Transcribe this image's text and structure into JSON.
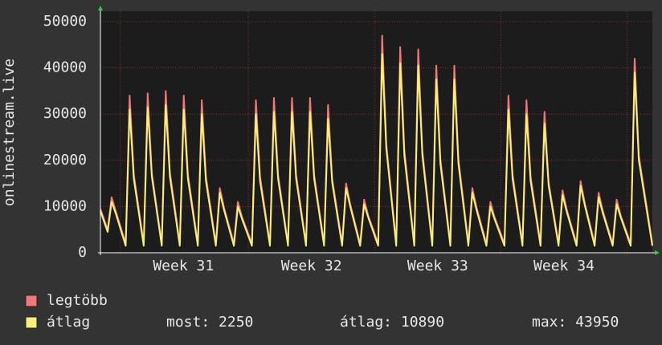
{
  "chart_data": {
    "type": "line",
    "y_label": "onlinestream.live",
    "x": [
      0,
      0.4,
      0.62,
      0.85,
      1.4,
      1.62,
      1.85,
      2.4,
      2.62,
      2.85,
      3.4,
      3.62,
      3.85,
      4.4,
      4.62,
      4.85,
      5.4,
      5.62,
      5.85,
      6.4,
      6.62,
      6.85,
      7.4,
      7.62,
      7.85,
      8.4,
      8.62,
      8.85,
      9.4,
      9.62,
      9.85,
      10.4,
      10.62,
      10.85,
      11.4,
      11.62,
      11.85,
      12.4,
      12.62,
      12.85,
      13.4,
      13.62,
      13.85,
      14.4,
      14.62,
      14.85,
      15.4,
      15.62,
      15.85,
      16.4,
      16.62,
      16.85,
      17.4,
      17.62,
      17.85,
      18.4,
      18.62,
      18.85,
      19.4,
      19.62,
      19.85,
      20.4,
      20.62,
      20.85,
      21.4,
      21.62,
      21.85,
      22.4,
      22.62,
      22.85,
      23.4,
      23.62,
      23.85,
      24.4,
      24.62,
      24.85,
      25.4,
      25.62,
      25.85,
      26.4,
      26.62,
      26.85,
      27.4,
      27.62,
      27.85,
      28.4,
      28.62,
      28.85,
      29.4,
      29.62,
      29.85,
      30.6
    ],
    "series": [
      {
        "name": "legtöbb",
        "color": "#f07878",
        "values": [
          9500,
          5000,
          12000,
          9000,
          2000,
          34000,
          17000,
          2000,
          34500,
          17200,
          2000,
          35000,
          17500,
          2000,
          34000,
          17000,
          2000,
          33000,
          16500,
          2000,
          14000,
          9800,
          2000,
          11000,
          7700,
          2000,
          33000,
          16500,
          2000,
          33500,
          16800,
          2000,
          33500,
          16800,
          2000,
          33500,
          16800,
          2000,
          32000,
          16000,
          2000,
          15000,
          10500,
          2000,
          11500,
          8000,
          2000,
          47000,
          23500,
          2000,
          44500,
          22200,
          2000,
          44000,
          22000,
          2000,
          40500,
          20200,
          2000,
          40500,
          20200,
          2000,
          14000,
          9800,
          2000,
          11000,
          7700,
          2000,
          34000,
          17000,
          2000,
          33000,
          16500,
          2000,
          30500,
          15200,
          2000,
          13500,
          9400,
          2000,
          15500,
          10800,
          2000,
          13000,
          9100,
          2000,
          11500,
          8000,
          2000,
          42000,
          21000,
          2000
        ]
      },
      {
        "name": "átlag",
        "color": "#f5f07a",
        "values": [
          9000,
          4500,
          11000,
          8500,
          1500,
          31000,
          16000,
          1500,
          31500,
          16500,
          1500,
          32000,
          16500,
          1500,
          31000,
          16000,
          1500,
          30000,
          15500,
          1500,
          13000,
          9300,
          1500,
          10000,
          7300,
          1500,
          30000,
          15500,
          1500,
          30500,
          16000,
          1500,
          30500,
          16000,
          1500,
          30500,
          16000,
          1500,
          29000,
          15200,
          1500,
          14000,
          10000,
          1500,
          10500,
          7600,
          1500,
          43000,
          22500,
          1500,
          41000,
          21000,
          1500,
          40500,
          21000,
          1500,
          37500,
          19200,
          1500,
          37500,
          19200,
          1500,
          13000,
          9300,
          1500,
          10000,
          7300,
          1500,
          31000,
          16000,
          1500,
          30000,
          15500,
          1500,
          28000,
          14500,
          1500,
          12500,
          8900,
          1500,
          14500,
          10300,
          1500,
          12000,
          8600,
          1500,
          10500,
          7600,
          1500,
          39000,
          20000,
          1500
        ]
      }
    ],
    "xlim": [
      0,
      30.6
    ],
    "xticks": [
      {
        "value": 4.6,
        "label": "Week 31"
      },
      {
        "value": 11.7,
        "label": "Week 32"
      },
      {
        "value": 18.7,
        "label": "Week 33"
      },
      {
        "value": 25.7,
        "label": "Week 34"
      }
    ],
    "ylim": [
      0,
      50000
    ],
    "yticks": [
      0,
      10000,
      20000,
      30000,
      40000,
      50000
    ],
    "grid": true,
    "stats": [
      "most: 2250",
      "átlag: 10890",
      "max: 43950"
    ]
  }
}
